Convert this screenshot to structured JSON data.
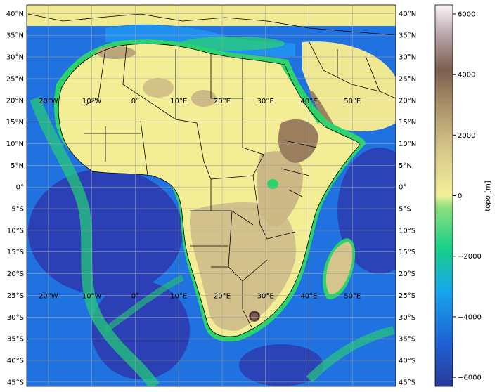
{
  "map": {
    "lat_labels": [
      "40°N",
      "35°N",
      "30°N",
      "25°N",
      "20°N",
      "15°N",
      "10°N",
      "5°N",
      "0°",
      "5°S",
      "10°S",
      "15°S",
      "20°S",
      "25°S",
      "30°S",
      "35°S",
      "40°S",
      "45°S"
    ],
    "lon_labels": [
      "20°W",
      "10°W",
      "0°",
      "10°E",
      "20°E",
      "30°E",
      "40°E",
      "50°E"
    ],
    "lon_extent": [
      -25,
      60
    ],
    "lat_extent": [
      -46,
      42
    ],
    "gridlines": true,
    "colors": {
      "deep_ocean": "#2a3fb8",
      "ocean": "#1f79e6",
      "shelf": "#2bd46a",
      "coast": "#a8f07c",
      "lowland": "#f3ee96",
      "plateau": "#d7c98a",
      "highland": "#a89064",
      "mountain": "#7a5a4e",
      "peak": "#f6eef6",
      "border": "#000000",
      "grid": "#a0a0a0"
    }
  },
  "colorbar": {
    "label": "topo [m]",
    "ticks": [
      "6000",
      "4000",
      "2000",
      "0",
      "−2000",
      "−4000",
      "−6000"
    ],
    "range": [
      -6300,
      6300
    ],
    "colormap": "terrain"
  }
}
